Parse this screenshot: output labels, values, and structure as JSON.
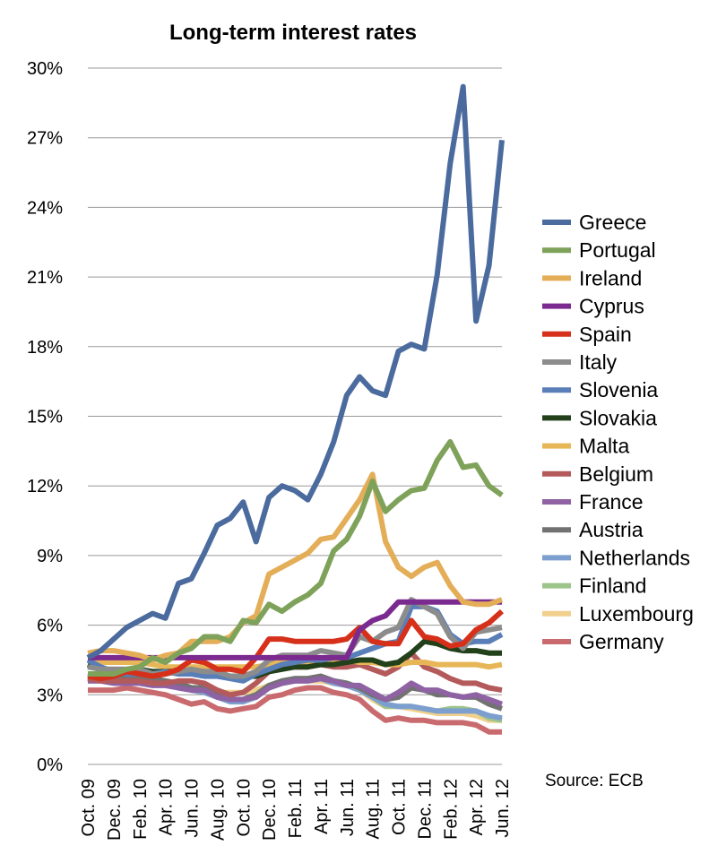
{
  "chart_data": {
    "type": "line",
    "title": "Long-term interest rates",
    "source": "Source: ECB",
    "xlabel": "",
    "ylabel": "",
    "ylim": [
      0,
      30
    ],
    "yticks": [
      "0%",
      "3%",
      "6%",
      "9%",
      "12%",
      "15%",
      "18%",
      "21%",
      "24%",
      "27%",
      "30%"
    ],
    "yticks_values": [
      0,
      3,
      6,
      9,
      12,
      15,
      18,
      21,
      24,
      27,
      30
    ],
    "grid": "horizontal",
    "legend_placement": "right",
    "x": [
      "Oct. 09",
      "Nov. 09",
      "Dec. 09",
      "Jan. 10",
      "Feb. 10",
      "Mar. 10",
      "Apr. 10",
      "May 10",
      "Jun. 10",
      "Jul. 10",
      "Aug. 10",
      "Sep. 10",
      "Oct. 10",
      "Nov. 10",
      "Dec. 10",
      "Jan. 11",
      "Feb. 11",
      "Mar. 11",
      "Apr. 11",
      "May 11",
      "Jun. 11",
      "Jul. 11",
      "Aug. 11",
      "Sep. 11",
      "Oct. 11",
      "Nov. 11",
      "Dec. 11",
      "Jan. 12",
      "Feb. 12",
      "Mar. 12",
      "Apr. 12",
      "May 12",
      "Jun. 12"
    ],
    "x_tick_labels": [
      "Oct. 09",
      "Dec. 09",
      "Feb. 10",
      "Apr. 10",
      "Jun. 10",
      "Aug. 10",
      "Oct. 10",
      "Dec. 10",
      "Feb. 11",
      "Apr. 11",
      "Jun. 11",
      "Aug. 11",
      "Oct. 11",
      "Dec. 11",
      "Feb. 12",
      "Apr. 12",
      "Jun. 12"
    ],
    "series": [
      {
        "name": "Germany",
        "color": "#c96b6e",
        "values": [
          3.2,
          3.2,
          3.2,
          3.3,
          3.2,
          3.1,
          3.0,
          2.8,
          2.6,
          2.7,
          2.4,
          2.3,
          2.4,
          2.5,
          2.9,
          3.0,
          3.2,
          3.3,
          3.3,
          3.1,
          3.0,
          2.8,
          2.3,
          1.9,
          2.0,
          1.9,
          1.9,
          1.8,
          1.8,
          1.8,
          1.7,
          1.4,
          1.4
        ]
      },
      {
        "name": "Luxembourg",
        "color": "#f1d08d",
        "values": [
          3.9,
          3.8,
          3.7,
          3.7,
          3.6,
          3.6,
          3.5,
          3.4,
          3.3,
          3.2,
          3.1,
          3.1,
          3.1,
          3.2,
          3.4,
          3.5,
          3.6,
          3.6,
          3.6,
          3.5,
          3.4,
          3.2,
          2.8,
          2.5,
          2.5,
          2.4,
          2.3,
          2.2,
          2.2,
          2.2,
          2.1,
          1.9,
          1.9
        ]
      },
      {
        "name": "Finland",
        "color": "#9dc48a",
        "values": [
          3.8,
          3.8,
          3.7,
          3.7,
          3.7,
          3.6,
          3.5,
          3.4,
          3.2,
          3.1,
          2.9,
          2.8,
          2.8,
          3.0,
          3.3,
          3.5,
          3.7,
          3.7,
          3.8,
          3.6,
          3.5,
          3.3,
          2.9,
          2.5,
          2.5,
          2.5,
          2.4,
          2.3,
          2.4,
          2.4,
          2.3,
          2.0,
          1.9
        ]
      },
      {
        "name": "Netherlands",
        "color": "#7d9fcf",
        "values": [
          3.6,
          3.6,
          3.6,
          3.6,
          3.6,
          3.5,
          3.5,
          3.3,
          3.2,
          3.1,
          2.9,
          2.7,
          2.7,
          2.9,
          3.3,
          3.5,
          3.6,
          3.6,
          3.7,
          3.5,
          3.4,
          3.2,
          2.9,
          2.6,
          2.5,
          2.5,
          2.4,
          2.3,
          2.3,
          2.3,
          2.3,
          2.1,
          2.0
        ]
      },
      {
        "name": "Austria",
        "color": "#727272",
        "values": [
          3.9,
          3.8,
          3.8,
          3.8,
          3.7,
          3.7,
          3.6,
          3.5,
          3.3,
          3.3,
          3.0,
          2.8,
          2.8,
          3.0,
          3.4,
          3.6,
          3.7,
          3.7,
          3.8,
          3.6,
          3.5,
          3.3,
          3.0,
          2.8,
          2.9,
          3.3,
          3.2,
          3.0,
          3.0,
          2.9,
          2.9,
          2.6,
          2.4
        ]
      },
      {
        "name": "France",
        "color": "#8e62a3",
        "values": [
          3.6,
          3.6,
          3.5,
          3.5,
          3.5,
          3.4,
          3.4,
          3.3,
          3.2,
          3.2,
          2.9,
          2.8,
          2.8,
          2.9,
          3.3,
          3.5,
          3.6,
          3.6,
          3.7,
          3.6,
          3.4,
          3.4,
          3.1,
          2.8,
          3.1,
          3.5,
          3.2,
          3.2,
          3.0,
          2.9,
          3.0,
          2.8,
          2.6
        ]
      },
      {
        "name": "Belgium",
        "color": "#b45a5b",
        "values": [
          3.7,
          3.6,
          3.6,
          3.6,
          3.6,
          3.5,
          3.5,
          3.6,
          3.6,
          3.5,
          3.2,
          3.0,
          3.1,
          3.5,
          4.0,
          4.2,
          4.2,
          4.2,
          4.3,
          4.2,
          4.2,
          4.3,
          4.1,
          3.9,
          4.2,
          4.8,
          4.2,
          4.0,
          3.7,
          3.5,
          3.5,
          3.3,
          3.2
        ]
      },
      {
        "name": "Malta",
        "color": "#e7b757",
        "values": [
          4.4,
          4.4,
          4.4,
          4.4,
          4.4,
          4.3,
          4.2,
          4.2,
          4.2,
          4.2,
          4.2,
          4.2,
          4.2,
          4.2,
          4.3,
          4.4,
          4.4,
          4.4,
          4.5,
          4.5,
          4.5,
          4.4,
          4.4,
          4.3,
          4.3,
          4.4,
          4.4,
          4.3,
          4.3,
          4.3,
          4.3,
          4.2,
          4.3
        ]
      },
      {
        "name": "Slovakia",
        "color": "#22411a",
        "values": [
          4.3,
          4.1,
          4.0,
          4.0,
          4.1,
          4.0,
          4.0,
          4.0,
          4.0,
          4.0,
          3.8,
          3.8,
          3.8,
          3.8,
          4.0,
          4.1,
          4.2,
          4.2,
          4.3,
          4.3,
          4.4,
          4.5,
          4.5,
          4.3,
          4.4,
          4.8,
          5.3,
          5.2,
          5.0,
          4.9,
          4.9,
          4.8,
          4.8
        ]
      },
      {
        "name": "Slovenia",
        "color": "#5a7eb8",
        "values": [
          4.5,
          4.2,
          4.0,
          3.9,
          3.9,
          3.9,
          4.0,
          3.9,
          3.9,
          3.8,
          3.8,
          3.7,
          3.6,
          3.9,
          4.1,
          4.3,
          4.4,
          4.5,
          4.5,
          4.6,
          4.6,
          4.8,
          5.0,
          5.2,
          5.3,
          6.8,
          6.8,
          6.6,
          5.6,
          5.2,
          5.3,
          5.3,
          5.6
        ]
      },
      {
        "name": "Italy",
        "color": "#8c8c8c",
        "values": [
          4.2,
          4.1,
          4.1,
          4.1,
          4.1,
          3.9,
          3.9,
          4.0,
          4.1,
          4.0,
          4.0,
          3.8,
          3.8,
          4.0,
          4.5,
          4.7,
          4.7,
          4.7,
          4.9,
          4.8,
          4.7,
          5.5,
          5.3,
          5.7,
          5.9,
          7.1,
          6.8,
          6.5,
          5.5,
          5.0,
          5.7,
          5.8,
          5.9
        ]
      },
      {
        "name": "Spain",
        "color": "#d6301b",
        "values": [
          3.8,
          3.7,
          3.8,
          4.0,
          3.9,
          3.8,
          3.9,
          4.1,
          4.5,
          4.4,
          4.1,
          4.1,
          4.0,
          4.6,
          5.4,
          5.4,
          5.3,
          5.3,
          5.3,
          5.3,
          5.4,
          5.9,
          5.3,
          5.2,
          5.2,
          6.2,
          5.5,
          5.4,
          5.1,
          5.2,
          5.8,
          6.1,
          6.6
        ]
      },
      {
        "name": "Cyprus",
        "color": "#7b2b8f",
        "values": [
          4.6,
          4.6,
          4.6,
          4.6,
          4.6,
          4.6,
          4.6,
          4.6,
          4.6,
          4.6,
          4.6,
          4.6,
          4.6,
          4.6,
          4.6,
          4.6,
          4.6,
          4.6,
          4.6,
          4.6,
          4.6,
          5.8,
          6.2,
          6.4,
          7.0,
          7.0,
          7.0,
          7.0,
          7.0,
          7.0,
          7.0,
          7.0,
          7.0
        ]
      },
      {
        "name": "Ireland",
        "color": "#e4ae58",
        "values": [
          4.8,
          4.9,
          4.9,
          4.8,
          4.7,
          4.5,
          4.7,
          4.8,
          5.3,
          5.3,
          5.3,
          5.5,
          6.1,
          6.4,
          8.2,
          8.5,
          8.8,
          9.1,
          9.7,
          9.8,
          10.6,
          11.4,
          12.5,
          9.6,
          8.5,
          8.1,
          8.5,
          8.7,
          7.7,
          7.0,
          6.9,
          6.9,
          7.1
        ]
      },
      {
        "name": "Portugal",
        "color": "#7fa25a",
        "values": [
          3.9,
          3.9,
          3.9,
          4.1,
          4.2,
          4.6,
          4.4,
          4.8,
          5.0,
          5.5,
          5.5,
          5.3,
          6.2,
          6.1,
          6.9,
          6.6,
          7.0,
          7.3,
          7.8,
          9.2,
          9.7,
          10.7,
          12.2,
          10.9,
          11.4,
          11.8,
          11.9,
          13.1,
          13.9,
          12.8,
          12.9,
          12.0,
          11.6
        ]
      },
      {
        "name": "Greece",
        "color": "#4b6b9e",
        "values": [
          4.6,
          4.9,
          5.4,
          5.9,
          6.2,
          6.5,
          6.3,
          7.8,
          8.0,
          9.1,
          10.3,
          10.6,
          11.3,
          9.6,
          11.5,
          12.0,
          11.8,
          11.4,
          12.5,
          13.9,
          15.9,
          16.7,
          16.1,
          15.9,
          17.8,
          18.1,
          17.9,
          21.1,
          25.9,
          29.2,
          19.1,
          21.5,
          26.9
        ]
      }
    ],
    "legend": [
      {
        "name": "Greece",
        "color": "#4b6b9e"
      },
      {
        "name": "Portugal",
        "color": "#7fa25a"
      },
      {
        "name": "Ireland",
        "color": "#e4ae58"
      },
      {
        "name": "Cyprus",
        "color": "#7b2b8f"
      },
      {
        "name": "Spain",
        "color": "#d6301b"
      },
      {
        "name": "Italy",
        "color": "#8c8c8c"
      },
      {
        "name": "Slovenia",
        "color": "#5a7eb8"
      },
      {
        "name": "Slovakia",
        "color": "#22411a"
      },
      {
        "name": "Malta",
        "color": "#e7b757"
      },
      {
        "name": "Belgium",
        "color": "#b45a5b"
      },
      {
        "name": "France",
        "color": "#8e62a3"
      },
      {
        "name": "Austria",
        "color": "#727272"
      },
      {
        "name": "Netherlands",
        "color": "#7d9fcf"
      },
      {
        "name": "Finland",
        "color": "#9dc48a"
      },
      {
        "name": "Luxembourg",
        "color": "#f1d08d"
      },
      {
        "name": "Germany",
        "color": "#c96b6e"
      }
    ]
  }
}
